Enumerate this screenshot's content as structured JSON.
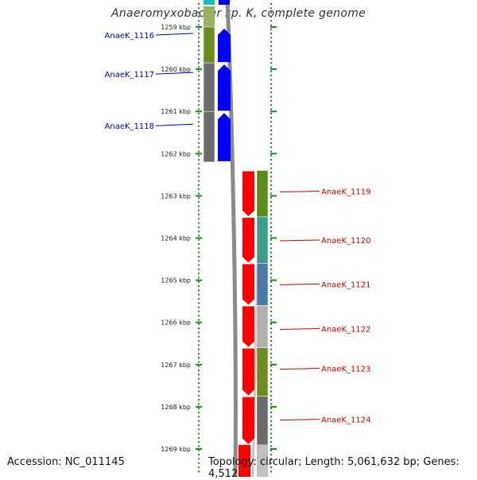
{
  "title": "Anaeromyxobacter sp. K, complete genome",
  "footer": {
    "accession": "Accession: NC_011145",
    "topology": "Topology: circular; Length: 5,061,632 bp; Genes: 4,512"
  },
  "ruler": {
    "first_kbp": 1259,
    "labels": [
      "1259 kbp",
      "1260 kbp",
      "1261 kbp",
      "1262 kbp",
      "1263 kbp",
      "1264 kbp",
      "1265 kbp",
      "1266 kbp",
      "1267 kbp",
      "1268 kbp",
      "1269 kbp"
    ]
  },
  "colors": {
    "left_labels": "#0000bb",
    "right_labels": "#cc0000",
    "gene_blue": "#0000ff",
    "gene_red": "#ff0000",
    "tick_green": "#1a8a1a"
  },
  "genes_left": [
    {
      "locus": "AnaeK_1116",
      "start_kbp": 1259.0,
      "end_kbp": 1259.85,
      "color": "#6e8b1e"
    },
    {
      "locus": "AnaeK_1117",
      "start_kbp": 1259.85,
      "end_kbp": 1261.0,
      "color": "#6b6b6b"
    },
    {
      "locus": "AnaeK_1118",
      "start_kbp": 1261.0,
      "end_kbp": 1262.2,
      "color": "#6b6b6b"
    }
  ],
  "genes_right": [
    {
      "locus": "AnaeK_1119",
      "start_kbp": 1262.4,
      "end_kbp": 1263.5,
      "color": "#5b8c1a"
    },
    {
      "locus": "AnaeK_1120",
      "start_kbp": 1263.5,
      "end_kbp": 1264.6,
      "color": "#3c9c8e"
    },
    {
      "locus": "AnaeK_1121",
      "start_kbp": 1264.6,
      "end_kbp": 1265.6,
      "color": "#4a7aaa"
    },
    {
      "locus": "AnaeK_1122",
      "start_kbp": 1265.6,
      "end_kbp": 1266.6,
      "color": "#b0b0b0"
    },
    {
      "locus": "AnaeK_1123",
      "start_kbp": 1266.6,
      "end_kbp": 1267.75,
      "color": "#6e8b1e"
    },
    {
      "locus": "AnaeK_1124",
      "start_kbp": 1267.75,
      "end_kbp": 1268.9,
      "color": "#6b6b6b"
    }
  ]
}
